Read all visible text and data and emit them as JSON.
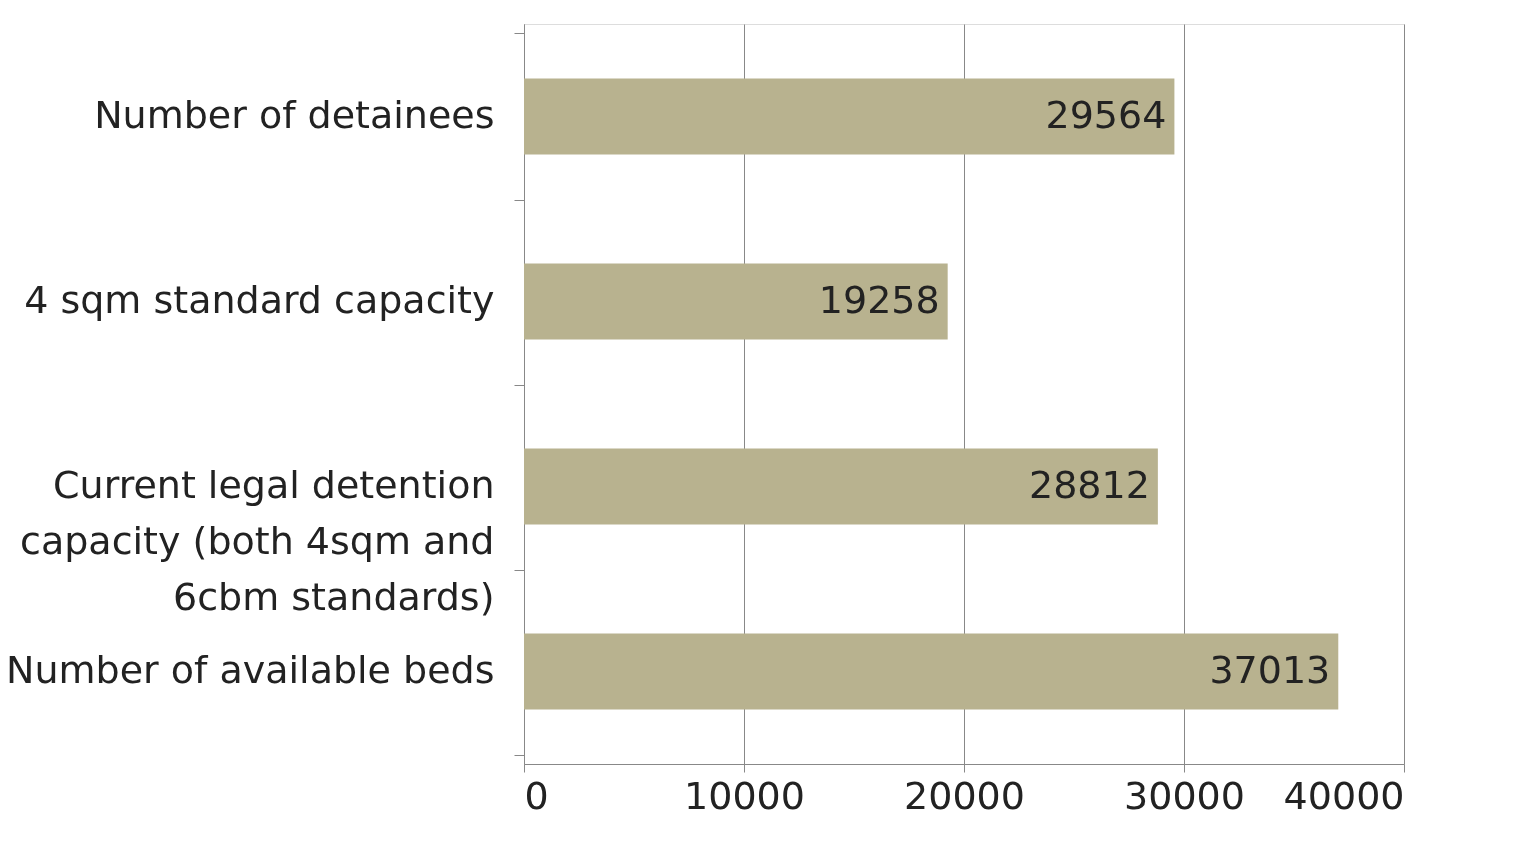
{
  "chart_data": {
    "type": "bar",
    "orientation": "horizontal",
    "categories": [
      "Number of detainees",
      "4 sqm standard capacity",
      "Current legal detention capacity (both 4sqm and 6cbm standards)",
      "Number of available beds"
    ],
    "values": [
      29564,
      19258,
      28812,
      37013
    ],
    "color": "#b8b28f",
    "xlim": [
      0,
      40000
    ],
    "xticks": [
      0,
      10000,
      20000,
      30000,
      40000
    ],
    "grid": "x",
    "data_labels": true
  }
}
